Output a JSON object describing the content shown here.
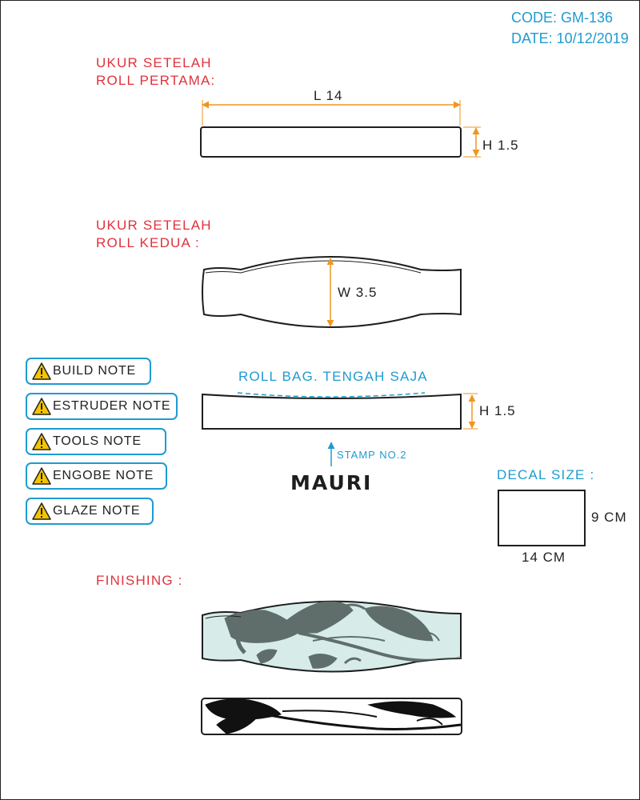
{
  "header": {
    "code": "CODE: GM-136",
    "date": "DATE: 10/12/2019"
  },
  "section_first_roll": {
    "line1": "UKUR SETELAH",
    "line2": "ROLL PERTAMA:",
    "length": "L 14",
    "height": "H 1.5"
  },
  "section_second_roll": {
    "line1": "UKUR SETELAH",
    "line2": "ROLL KEDUA :",
    "width": "W 3.5"
  },
  "middle_roll": {
    "label": "ROLL BAG. TENGAH SAJA",
    "height": "H 1.5"
  },
  "stamp": {
    "label": "STAMP NO.2",
    "logo": "MAURI"
  },
  "decal": {
    "title": "DECAL SIZE :",
    "height": "9 CM",
    "width": "14 CM"
  },
  "finishing": {
    "label": "FINISHING :"
  },
  "notes": [
    {
      "label": "BUILD NOTE"
    },
    {
      "label": "ESTRUDER NOTE"
    },
    {
      "label": "TOOLS NOTE"
    },
    {
      "label": "ENGOBE NOTE"
    },
    {
      "label": "GLAZE NOTE"
    }
  ],
  "colors": {
    "accent_blue": "#1f9bd0",
    "label_red": "#e0323c",
    "dimension_orange": "#f0961e",
    "glaze_teal": "#d7ece9",
    "decal_gray": "#5f6e6b"
  }
}
